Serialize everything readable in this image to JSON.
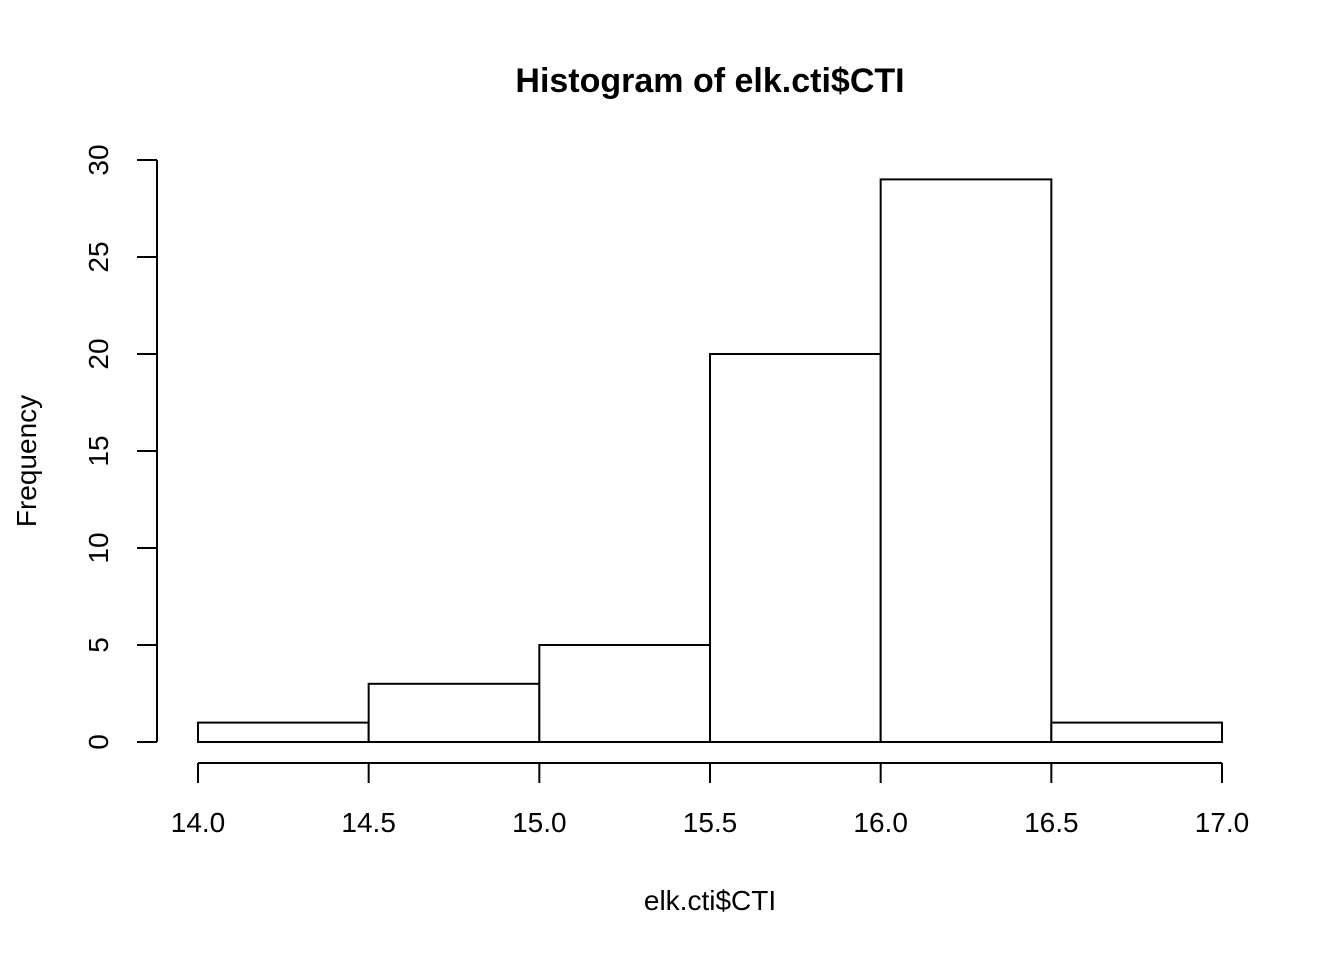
{
  "chart_data": {
    "type": "bar",
    "title": "Histogram of elk.cti$CTI",
    "xlabel": "elk.cti$CTI",
    "ylabel": "Frequency",
    "bins": [
      {
        "start": 14.0,
        "end": 14.5,
        "count": 1
      },
      {
        "start": 14.5,
        "end": 15.0,
        "count": 3
      },
      {
        "start": 15.0,
        "end": 15.5,
        "count": 5
      },
      {
        "start": 15.5,
        "end": 16.0,
        "count": 20
      },
      {
        "start": 16.0,
        "end": 16.5,
        "count": 29
      },
      {
        "start": 16.5,
        "end": 17.0,
        "count": 1
      }
    ],
    "xlim": [
      14.0,
      17.0
    ],
    "ylim": [
      0,
      30
    ],
    "x_ticks": [
      "14.0",
      "14.5",
      "15.0",
      "15.5",
      "16.0",
      "16.5",
      "17.0"
    ],
    "y_ticks": [
      "0",
      "5",
      "10",
      "15",
      "20",
      "25",
      "30"
    ],
    "grid": false,
    "legend": "none",
    "colors": {
      "bar_fill": "#ffffff",
      "bar_stroke": "#000000"
    }
  }
}
